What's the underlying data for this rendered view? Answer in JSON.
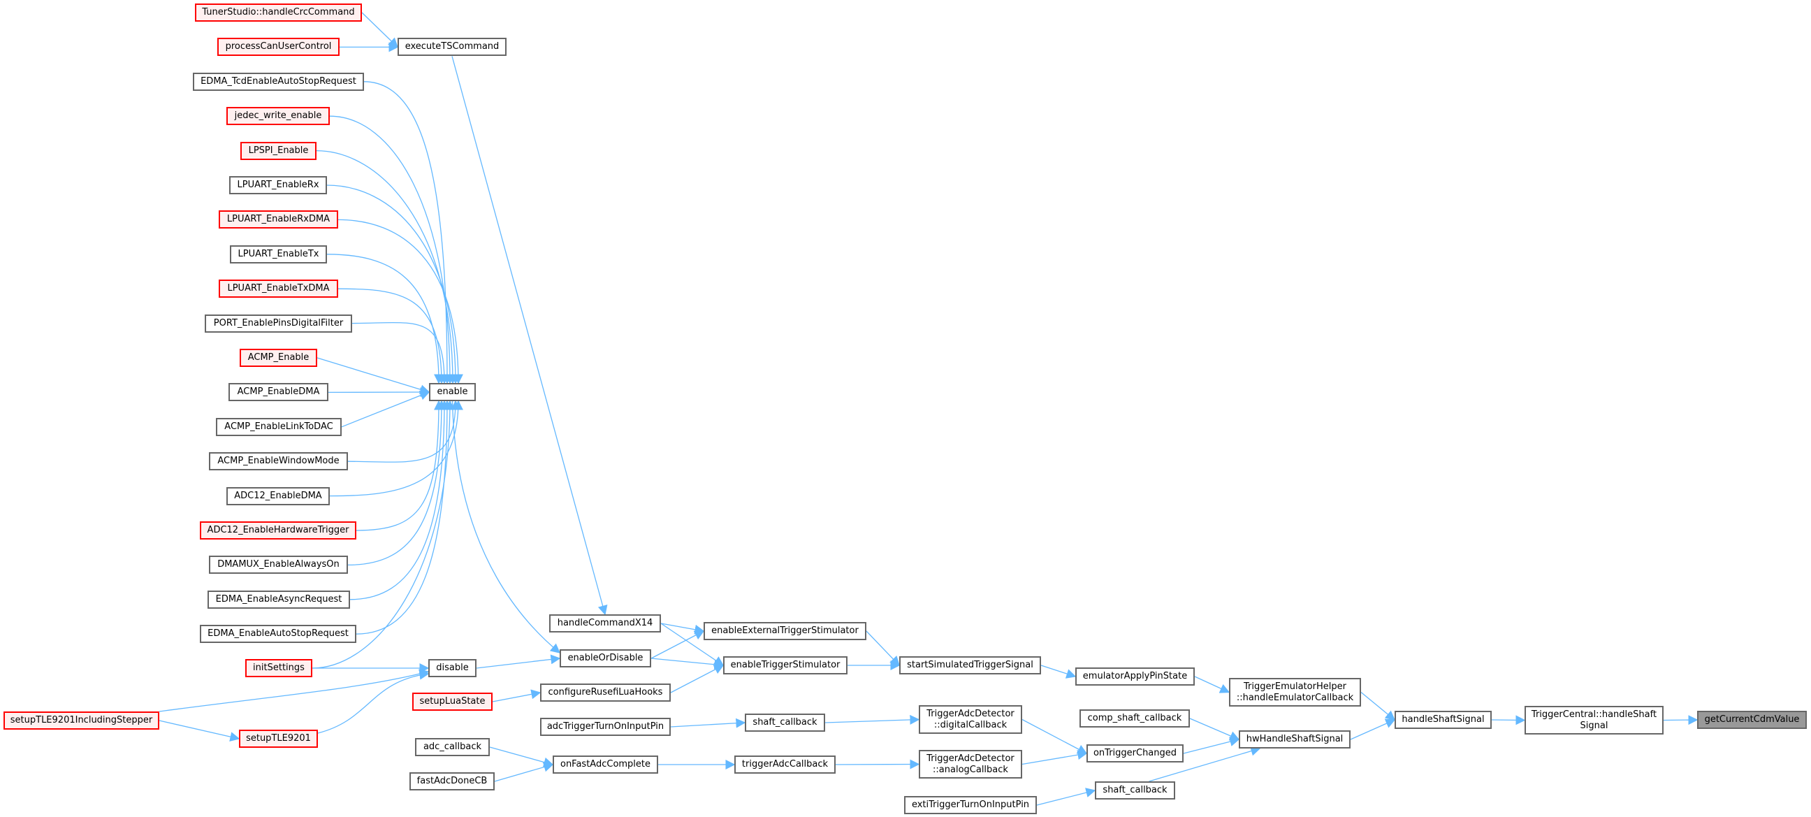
{
  "colors": {
    "edge": "#63b8ff",
    "node_border": "#666666",
    "truncated_border": "#ff0000",
    "truncated_fill": "#fff0f0",
    "target_fill": "#999999"
  },
  "nodes": [
    {
      "id": "tunerCrc",
      "label": "TunerStudio::handleCrcCommand",
      "kind": "red"
    },
    {
      "id": "procCan",
      "label": "processCanUserControl",
      "kind": "red"
    },
    {
      "id": "execTS",
      "label": "executeTSCommand",
      "kind": "normal"
    },
    {
      "id": "edmaTcd",
      "label": "EDMA_TcdEnableAutoStopRequest",
      "kind": "normal"
    },
    {
      "id": "jedec",
      "label": "jedec_write_enable",
      "kind": "red"
    },
    {
      "id": "lpspi",
      "label": "LPSPI_Enable",
      "kind": "red"
    },
    {
      "id": "lpRx",
      "label": "LPUART_EnableRx",
      "kind": "normal"
    },
    {
      "id": "lpRxDma",
      "label": "LPUART_EnableRxDMA",
      "kind": "red"
    },
    {
      "id": "lpTx",
      "label": "LPUART_EnableTx",
      "kind": "normal"
    },
    {
      "id": "lpTxDma",
      "label": "LPUART_EnableTxDMA",
      "kind": "red"
    },
    {
      "id": "portFilt",
      "label": "PORT_EnablePinsDigitalFilter",
      "kind": "normal"
    },
    {
      "id": "acmpEn",
      "label": "ACMP_Enable",
      "kind": "red"
    },
    {
      "id": "acmpDma",
      "label": "ACMP_EnableDMA",
      "kind": "normal"
    },
    {
      "id": "acmpDac",
      "label": "ACMP_EnableLinkToDAC",
      "kind": "normal"
    },
    {
      "id": "acmpWin",
      "label": "ACMP_EnableWindowMode",
      "kind": "normal"
    },
    {
      "id": "adcDma",
      "label": "ADC12_EnableDMA",
      "kind": "normal"
    },
    {
      "id": "adcHw",
      "label": "ADC12_EnableHardwareTrigger",
      "kind": "red"
    },
    {
      "id": "dmamux",
      "label": "DMAMUX_EnableAlwaysOn",
      "kind": "normal"
    },
    {
      "id": "edmaAsync",
      "label": "EDMA_EnableAsyncRequest",
      "kind": "normal"
    },
    {
      "id": "edmaAuto",
      "label": "EDMA_EnableAutoStopRequest",
      "kind": "normal"
    },
    {
      "id": "initSet",
      "label": "initSettings",
      "kind": "red"
    },
    {
      "id": "enable",
      "label": "enable",
      "kind": "normal"
    },
    {
      "id": "disable",
      "label": "disable",
      "kind": "normal"
    },
    {
      "id": "tleStep",
      "label": "setupTLE9201IncludingStepper",
      "kind": "red"
    },
    {
      "id": "tle",
      "label": "setupTLE9201",
      "kind": "red"
    },
    {
      "id": "luaState",
      "label": "setupLuaState",
      "kind": "red"
    },
    {
      "id": "adcCb",
      "label": "adc_callback",
      "kind": "normal"
    },
    {
      "id": "fastAdc",
      "label": "fastAdcDoneCB",
      "kind": "normal"
    },
    {
      "id": "cmdX14",
      "label": "handleCommandX14",
      "kind": "normal"
    },
    {
      "id": "enOrDis",
      "label": "enableOrDisable",
      "kind": "normal"
    },
    {
      "id": "luaHooks",
      "label": "configureRusefiLuaHooks",
      "kind": "normal"
    },
    {
      "id": "adcTrigPin",
      "label": "adcTriggerTurnOnInputPin",
      "kind": "normal"
    },
    {
      "id": "onFastAdc",
      "label": "onFastAdcComplete",
      "kind": "normal"
    },
    {
      "id": "extStim",
      "label": "enableExternalTriggerStimulator",
      "kind": "normal"
    },
    {
      "id": "trigStim",
      "label": "enableTriggerStimulator",
      "kind": "normal"
    },
    {
      "id": "shaftCb1",
      "label": "shaft_callback",
      "kind": "normal"
    },
    {
      "id": "trigAdcCb",
      "label": "triggerAdcCallback",
      "kind": "normal"
    },
    {
      "id": "startSim",
      "label": "startSimulatedTriggerSignal",
      "kind": "normal"
    },
    {
      "id": "digCb",
      "label": "TriggerAdcDetector\n::digitalCallback",
      "kind": "normal"
    },
    {
      "id": "anaCb",
      "label": "TriggerAdcDetector\n::analogCallback",
      "kind": "normal"
    },
    {
      "id": "exti",
      "label": "extiTriggerTurnOnInputPin",
      "kind": "normal"
    },
    {
      "id": "emuPin",
      "label": "emulatorApplyPinState",
      "kind": "normal"
    },
    {
      "id": "compShaft",
      "label": "comp_shaft_callback",
      "kind": "normal"
    },
    {
      "id": "onTrig",
      "label": "onTriggerChanged",
      "kind": "normal"
    },
    {
      "id": "shaftCb2",
      "label": "shaft_callback",
      "kind": "normal"
    },
    {
      "id": "emuHelper",
      "label": "TriggerEmulatorHelper\n::handleEmulatorCallback",
      "kind": "normal"
    },
    {
      "id": "hwShaft",
      "label": "hwHandleShaftSignal",
      "kind": "normal"
    },
    {
      "id": "handleShaft",
      "label": "handleShaftSignal",
      "kind": "normal"
    },
    {
      "id": "tcShaft",
      "label": "TriggerCentral::handleShaft\nSignal",
      "kind": "normal"
    },
    {
      "id": "cdm",
      "label": "getCurrentCdmValue",
      "kind": "target"
    }
  ],
  "edges": [
    [
      "tunerCrc",
      "execTS"
    ],
    [
      "procCan",
      "execTS"
    ],
    [
      "execTS",
      "cmdX14"
    ],
    [
      "edmaTcd",
      "enable"
    ],
    [
      "jedec",
      "enable"
    ],
    [
      "lpspi",
      "enable"
    ],
    [
      "lpRx",
      "enable"
    ],
    [
      "lpRxDma",
      "enable"
    ],
    [
      "lpTx",
      "enable"
    ],
    [
      "lpTxDma",
      "enable"
    ],
    [
      "portFilt",
      "enable"
    ],
    [
      "acmpEn",
      "enable"
    ],
    [
      "acmpDma",
      "enable"
    ],
    [
      "acmpDac",
      "enable"
    ],
    [
      "acmpWin",
      "enable"
    ],
    [
      "adcDma",
      "enable"
    ],
    [
      "adcHw",
      "enable"
    ],
    [
      "dmamux",
      "enable"
    ],
    [
      "edmaAsync",
      "enable"
    ],
    [
      "edmaAuto",
      "enable"
    ],
    [
      "initSet",
      "enable"
    ],
    [
      "enable",
      "enOrDis"
    ],
    [
      "initSet",
      "disable"
    ],
    [
      "tleStep",
      "disable"
    ],
    [
      "tleStep",
      "tle"
    ],
    [
      "tle",
      "disable"
    ],
    [
      "disable",
      "enOrDis"
    ],
    [
      "cmdX14",
      "extStim"
    ],
    [
      "cmdX14",
      "trigStim"
    ],
    [
      "enOrDis",
      "extStim"
    ],
    [
      "enOrDis",
      "trigStim"
    ],
    [
      "luaHooks",
      "trigStim"
    ],
    [
      "luaState",
      "luaHooks"
    ],
    [
      "extStim",
      "startSim"
    ],
    [
      "trigStim",
      "startSim"
    ],
    [
      "startSim",
      "emuPin"
    ],
    [
      "emuPin",
      "emuHelper"
    ],
    [
      "emuHelper",
      "handleShaft"
    ],
    [
      "hwShaft",
      "handleShaft"
    ],
    [
      "handleShaft",
      "tcShaft"
    ],
    [
      "tcShaft",
      "cdm"
    ],
    [
      "adcTrigPin",
      "shaftCb1"
    ],
    [
      "shaftCb1",
      "digCb"
    ],
    [
      "digCb",
      "onTrig"
    ],
    [
      "anaCb",
      "onTrig"
    ],
    [
      "onTrig",
      "hwShaft"
    ],
    [
      "compShaft",
      "hwShaft"
    ],
    [
      "shaftCb2",
      "hwShaft"
    ],
    [
      "exti",
      "shaftCb2"
    ],
    [
      "adcCb",
      "onFastAdc"
    ],
    [
      "fastAdc",
      "onFastAdc"
    ],
    [
      "onFastAdc",
      "trigAdcCb"
    ],
    [
      "trigAdcCb",
      "anaCb"
    ]
  ]
}
